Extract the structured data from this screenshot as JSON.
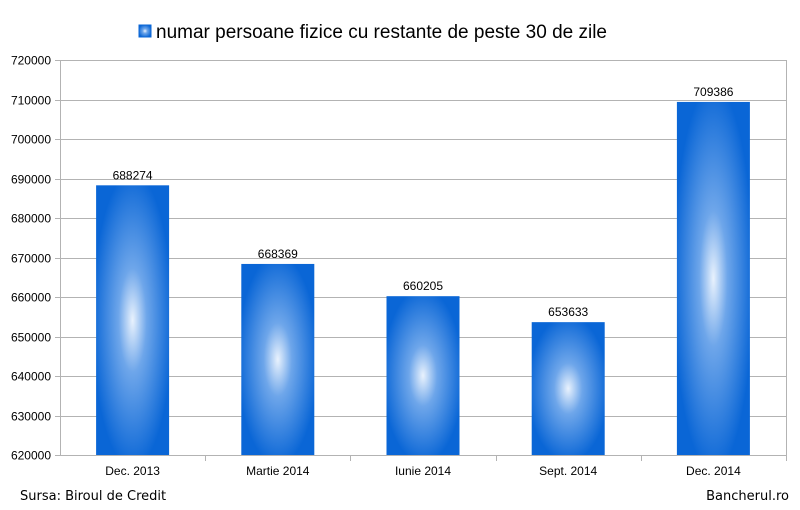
{
  "chart_data": {
    "type": "bar",
    "categories": [
      "Dec. 2013",
      "Martie 2014",
      "Iunie 2014",
      "Sept. 2014",
      "Dec. 2014"
    ],
    "series": [
      {
        "name": "numar persoane fizice cu restante de peste 30 de zile",
        "values": [
          688274,
          668369,
          660205,
          653633,
          709386
        ]
      }
    ],
    "ylim": [
      620000,
      720000
    ],
    "yticks": [
      620000,
      630000,
      640000,
      650000,
      660000,
      670000,
      680000,
      690000,
      700000,
      710000,
      720000
    ],
    "grid": true,
    "legend": "top",
    "data_labels": true,
    "bar_color": "#0a66d6"
  },
  "footer": {
    "source": "Sursa: Biroul de Credit",
    "brand": "Bancherul.ro"
  }
}
